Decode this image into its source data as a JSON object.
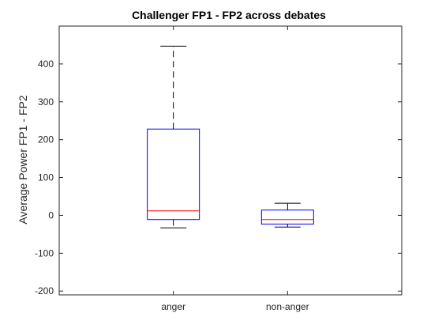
{
  "chart_data": {
    "type": "box",
    "title": "Challenger FP1 - FP2 across debates",
    "xlabel": "",
    "ylabel": "Average Power FP1 - FP2",
    "ylim": [
      -210,
      500
    ],
    "yticks": [
      -200,
      -100,
      0,
      100,
      200,
      300,
      400
    ],
    "categories": [
      "anger",
      "non-anger"
    ],
    "boxes": [
      {
        "category": "anger",
        "whisker_low": -33,
        "q1": -11,
        "median": 12,
        "q3": 228,
        "whisker_high": 447
      },
      {
        "category": "non-anger",
        "whisker_low": -31,
        "q1": -23,
        "median": -11,
        "q3": 14,
        "whisker_high": 32
      }
    ],
    "grid": false,
    "legend": "none",
    "colors": {
      "box": "#0000ff",
      "median": "#ff0000",
      "whisker": "#000000",
      "axes": "#262626",
      "background": "#ffffff"
    }
  }
}
